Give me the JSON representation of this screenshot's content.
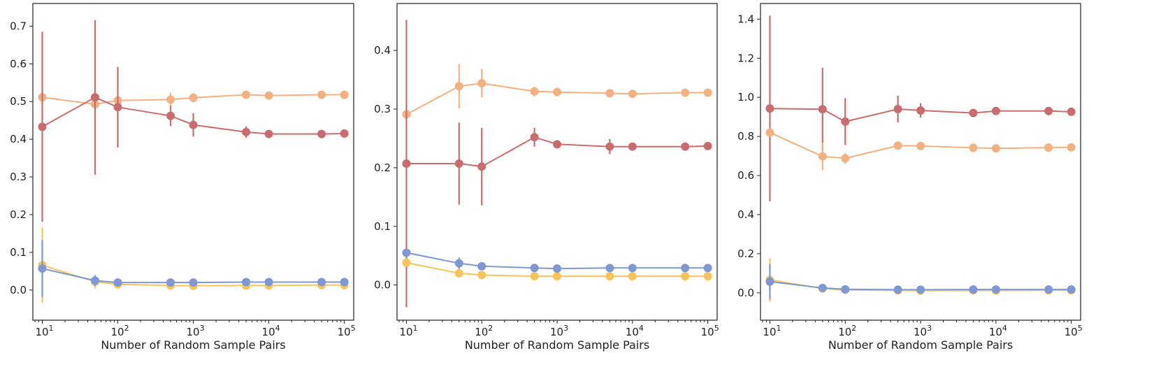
{
  "chart_data": [
    {
      "type": "line",
      "xscale": "log",
      "xlabel": "Number of Random Sample Pairs",
      "ylabel": "",
      "title": "",
      "x": [
        10,
        50,
        100,
        500,
        1000,
        5000,
        10000,
        50000,
        100000
      ],
      "xticks": [
        10,
        100,
        1000,
        10000,
        100000
      ],
      "xtick_labels": [
        [
          "10",
          "1"
        ],
        [
          "10",
          "2"
        ],
        [
          "10",
          "3"
        ],
        [
          "10",
          "4"
        ],
        [
          "10",
          "5"
        ]
      ],
      "xlim": [
        7.5,
        133000
      ],
      "ylim": [
        -0.08,
        0.76
      ],
      "yticks": [
        0.0,
        0.1,
        0.2,
        0.3,
        0.4,
        0.5,
        0.6,
        0.7
      ],
      "ytick_labels": [
        "0.0",
        "0.1",
        "0.2",
        "0.3",
        "0.4",
        "0.5",
        "0.6",
        "0.7"
      ],
      "series": [
        {
          "color": "#f4b07f",
          "y": [
            0.511,
            0.493,
            0.503,
            0.505,
            0.51,
            0.518,
            0.516,
            0.518,
            0.518
          ],
          "err": [
            0.0,
            0.0,
            0.0,
            0.018,
            0.012,
            0.004,
            0.003,
            0.003,
            0.003
          ]
        },
        {
          "color": "#cc6b6d",
          "y": [
            0.433,
            0.511,
            0.485,
            0.462,
            0.438,
            0.419,
            0.414,
            0.414,
            0.415
          ],
          "err": [
            0.252,
            0.205,
            0.107,
            0.027,
            0.031,
            0.015,
            0.01,
            0.003,
            0.003
          ]
        },
        {
          "color": "#f8c45a",
          "y": [
            0.066,
            0.022,
            0.015,
            0.012,
            0.011,
            0.012,
            0.012,
            0.013,
            0.013
          ],
          "err": [
            0.1,
            0.018,
            0.004,
            0.002,
            0.002,
            0.002,
            0.002,
            0.001,
            0.001
          ]
        },
        {
          "color": "#7f98d5",
          "y": [
            0.057,
            0.025,
            0.02,
            0.02,
            0.02,
            0.021,
            0.021,
            0.021,
            0.021
          ],
          "err": [
            0.075,
            0.014,
            0.004,
            0.002,
            0.002,
            0.002,
            0.002,
            0.001,
            0.001
          ]
        }
      ]
    },
    {
      "type": "line",
      "xscale": "log",
      "xlabel": "Number of Random Sample Pairs",
      "ylabel": "",
      "title": "",
      "x": [
        10,
        50,
        100,
        500,
        1000,
        5000,
        10000,
        50000,
        100000
      ],
      "xticks": [
        10,
        100,
        1000,
        10000,
        100000
      ],
      "xtick_labels": [
        [
          "10",
          "1"
        ],
        [
          "10",
          "2"
        ],
        [
          "10",
          "3"
        ],
        [
          "10",
          "4"
        ],
        [
          "10",
          "5"
        ]
      ],
      "xlim": [
        7.5,
        133000
      ],
      "ylim": [
        -0.06,
        0.48
      ],
      "yticks": [
        0.0,
        0.1,
        0.2,
        0.3,
        0.4
      ],
      "ytick_labels": [
        "0.0",
        "0.1",
        "0.2",
        "0.3",
        "0.4"
      ],
      "series": [
        {
          "color": "#f4b07f",
          "y": [
            0.291,
            0.339,
            0.344,
            0.33,
            0.329,
            0.327,
            0.326,
            0.328,
            0.328
          ],
          "err": [
            0.0,
            0.038,
            0.024,
            0.008,
            0.007,
            0.002,
            0.002,
            0.002,
            0.002
          ]
        },
        {
          "color": "#cc6b6d",
          "y": [
            0.207,
            0.207,
            0.202,
            0.252,
            0.24,
            0.236,
            0.236,
            0.236,
            0.237
          ],
          "err": [
            0.245,
            0.07,
            0.066,
            0.016,
            0.006,
            0.013,
            0.003,
            0.002,
            0.002
          ]
        },
        {
          "color": "#f8c45a",
          "y": [
            0.038,
            0.02,
            0.017,
            0.015,
            0.015,
            0.015,
            0.015,
            0.015,
            0.015
          ],
          "err": [
            0.004,
            0.004,
            0.002,
            0.002,
            0.002,
            0.001,
            0.001,
            0.001,
            0.001
          ]
        },
        {
          "color": "#7f98d5",
          "y": [
            0.055,
            0.037,
            0.032,
            0.029,
            0.028,
            0.029,
            0.029,
            0.029,
            0.029
          ],
          "err": [
            0.004,
            0.01,
            0.004,
            0.002,
            0.002,
            0.002,
            0.001,
            0.001,
            0.001
          ]
        }
      ]
    },
    {
      "type": "line",
      "xscale": "log",
      "xlabel": "Number of Random Sample Pairs",
      "ylabel": "",
      "title": "",
      "x": [
        10,
        50,
        100,
        500,
        1000,
        5000,
        10000,
        50000,
        100000
      ],
      "xticks": [
        10,
        100,
        1000,
        10000,
        100000
      ],
      "xtick_labels": [
        [
          "10",
          "1"
        ],
        [
          "10",
          "2"
        ],
        [
          "10",
          "3"
        ],
        [
          "10",
          "4"
        ],
        [
          "10",
          "5"
        ]
      ],
      "xlim": [
        7.5,
        133000
      ],
      "ylim": [
        -0.14,
        1.48
      ],
      "yticks": [
        0.0,
        0.2,
        0.4,
        0.6,
        0.8,
        1.0,
        1.2,
        1.4
      ],
      "ytick_labels": [
        "0.0",
        "0.2",
        "0.4",
        "0.6",
        "0.8",
        "1.0",
        "1.2",
        "1.4"
      ],
      "series": [
        {
          "color": "#cc6b6d",
          "y": [
            0.943,
            0.939,
            0.876,
            0.94,
            0.933,
            0.92,
            0.93,
            0.93,
            0.926
          ],
          "err": [
            0.475,
            0.212,
            0.12,
            0.068,
            0.037,
            0.006,
            0.005,
            0.004,
            0.004
          ]
        },
        {
          "color": "#f4b07f",
          "y": [
            0.82,
            0.698,
            0.688,
            0.753,
            0.751,
            0.742,
            0.739,
            0.743,
            0.744
          ],
          "err": [
            0.0,
            0.07,
            0.028,
            0.017,
            0.013,
            0.004,
            0.003,
            0.002,
            0.002
          ]
        },
        {
          "color": "#f8c45a",
          "y": [
            0.066,
            0.022,
            0.015,
            0.012,
            0.011,
            0.012,
            0.012,
            0.013,
            0.013
          ],
          "err": [
            0.11,
            0.014,
            0.003,
            0.002,
            0.002,
            0.002,
            0.002,
            0.001,
            0.001
          ]
        },
        {
          "color": "#7f98d5",
          "y": [
            0.057,
            0.025,
            0.018,
            0.016,
            0.016,
            0.017,
            0.017,
            0.017,
            0.017
          ],
          "err": [
            0.09,
            0.01,
            0.003,
            0.002,
            0.002,
            0.002,
            0.001,
            0.001,
            0.001
          ]
        }
      ]
    }
  ]
}
